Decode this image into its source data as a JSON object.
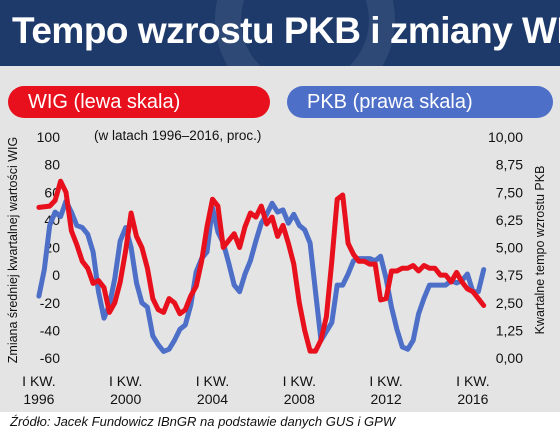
{
  "header": {
    "title": "Tempo wzrostu PKB i zmiany WIG"
  },
  "legend": {
    "wig": "WIG (lewa skala)",
    "pkb": "PKB (prawa skala)"
  },
  "footer": {
    "source": "Źródło: Jacek Fundowicz IBnGR na podstawie danych GUS i GPW"
  },
  "colors": {
    "wig": "#e8101c",
    "pkb": "#4d6fc7",
    "header_bg": "#1e3a6b",
    "plot_bg": "#e4e4e4"
  },
  "chart_data": {
    "type": "line",
    "subtitle": "(w latach 1996–2016, proc.)",
    "ylabel_left": "Zmiana średniej kwartalnej wartości WIG",
    "ylabel_right": "Kwartalne tempo wzrostu PKB",
    "left_ticks": [
      "100",
      "80",
      "60",
      "40",
      "20",
      "0",
      "-20",
      "-40",
      "-60"
    ],
    "right_ticks": [
      "10,00",
      "8,75",
      "7,50",
      "6,25",
      "5,00",
      "3,75",
      "2,50",
      "1,25",
      "0,00"
    ],
    "x_tick_labels": [
      {
        "line1": "I KW.",
        "line2": "1996",
        "x": 1996
      },
      {
        "line1": "I KW.",
        "line2": "2000",
        "x": 2000
      },
      {
        "line1": "I KW.",
        "line2": "2004",
        "x": 2004
      },
      {
        "line1": "I KW.",
        "line2": "2008",
        "x": 2008
      },
      {
        "line1": "I KW.",
        "line2": "2012",
        "x": 2012
      },
      {
        "line1": "I KW.",
        "line2": "2016",
        "x": 2016
      }
    ],
    "xlim": [
      1995.5,
      2017.25
    ],
    "ylim_left": [
      -65,
      100
    ],
    "ylim_right": [
      -0.5,
      10
    ],
    "grid": false,
    "series": [
      {
        "name": "WIG (lewa skala)",
        "axis": "left",
        "color": "#e8101c",
        "points": [
          [
            1996.0,
            49
          ],
          [
            1996.5,
            50
          ],
          [
            1996.75,
            54
          ],
          [
            1997.0,
            68
          ],
          [
            1997.25,
            60
          ],
          [
            1997.5,
            32
          ],
          [
            1997.75,
            22
          ],
          [
            1998.0,
            10
          ],
          [
            1998.25,
            5
          ],
          [
            1998.5,
            -6
          ],
          [
            1998.75,
            -4
          ],
          [
            1999.0,
            -9
          ],
          [
            1999.25,
            -27
          ],
          [
            1999.5,
            -20
          ],
          [
            1999.75,
            -5
          ],
          [
            2000.0,
            18
          ],
          [
            2000.25,
            45
          ],
          [
            2000.5,
            28
          ],
          [
            2000.75,
            20
          ],
          [
            2001.0,
            5
          ],
          [
            2001.25,
            -17
          ],
          [
            2001.5,
            -25
          ],
          [
            2001.75,
            -27
          ],
          [
            2002.0,
            -17
          ],
          [
            2002.25,
            -20
          ],
          [
            2002.5,
            -28
          ],
          [
            2002.75,
            -25
          ],
          [
            2003.0,
            -15
          ],
          [
            2003.25,
            -8
          ],
          [
            2003.5,
            10
          ],
          [
            2003.75,
            35
          ],
          [
            2004.0,
            55
          ],
          [
            2004.25,
            50
          ],
          [
            2004.5,
            20
          ],
          [
            2004.75,
            25
          ],
          [
            2005.0,
            30
          ],
          [
            2005.25,
            20
          ],
          [
            2005.5,
            35
          ],
          [
            2005.75,
            45
          ],
          [
            2006.0,
            42
          ],
          [
            2006.25,
            50
          ],
          [
            2006.5,
            37
          ],
          [
            2006.75,
            42
          ],
          [
            2007.0,
            28
          ],
          [
            2007.25,
            36
          ],
          [
            2007.5,
            23
          ],
          [
            2007.75,
            8
          ],
          [
            2008.0,
            -20
          ],
          [
            2008.25,
            -40
          ],
          [
            2008.5,
            -55
          ],
          [
            2008.75,
            -55
          ],
          [
            2009.0,
            -47
          ],
          [
            2009.25,
            -30
          ],
          [
            2009.5,
            10
          ],
          [
            2009.75,
            55
          ],
          [
            2010.0,
            58
          ],
          [
            2010.25,
            23
          ],
          [
            2010.5,
            15
          ],
          [
            2010.75,
            10
          ],
          [
            2011.0,
            10
          ],
          [
            2011.25,
            8
          ],
          [
            2011.5,
            8
          ],
          [
            2011.75,
            -18
          ],
          [
            2012.0,
            -17
          ],
          [
            2012.25,
            3
          ],
          [
            2012.5,
            3
          ],
          [
            2012.75,
            5
          ],
          [
            2013.0,
            5
          ],
          [
            2013.25,
            7
          ],
          [
            2013.5,
            3
          ],
          [
            2013.75,
            7
          ],
          [
            2014.0,
            5
          ],
          [
            2014.25,
            5
          ],
          [
            2014.5,
            0
          ],
          [
            2014.75,
            0
          ],
          [
            2015.0,
            -5
          ],
          [
            2015.25,
            2
          ],
          [
            2015.5,
            -5
          ],
          [
            2015.75,
            -10
          ],
          [
            2016.0,
            -12
          ],
          [
            2016.25,
            -17
          ],
          [
            2016.5,
            -22
          ]
        ]
      },
      {
        "name": "PKB (prawa skala)",
        "axis": "right",
        "color": "#4d6fc7",
        "points": [
          [
            1996.0,
            2.8
          ],
          [
            1996.25,
            4.0
          ],
          [
            1996.5,
            6.0
          ],
          [
            1996.75,
            6.6
          ],
          [
            1997.0,
            6.4
          ],
          [
            1997.25,
            7.1
          ],
          [
            1997.5,
            6.6
          ],
          [
            1997.75,
            6.0
          ],
          [
            1998.0,
            5.9
          ],
          [
            1998.25,
            5.6
          ],
          [
            1998.5,
            4.8
          ],
          [
            1998.75,
            3.0
          ],
          [
            1999.0,
            1.8
          ],
          [
            1999.25,
            2.4
          ],
          [
            1999.5,
            3.6
          ],
          [
            1999.75,
            5.3
          ],
          [
            2000.0,
            5.9
          ],
          [
            2000.25,
            5.0
          ],
          [
            2000.5,
            3.4
          ],
          [
            2000.75,
            2.5
          ],
          [
            2001.0,
            2.3
          ],
          [
            2001.25,
            1.0
          ],
          [
            2001.5,
            0.6
          ],
          [
            2001.75,
            0.3
          ],
          [
            2002.0,
            0.4
          ],
          [
            2002.25,
            0.8
          ],
          [
            2002.5,
            1.3
          ],
          [
            2002.75,
            1.5
          ],
          [
            2003.0,
            2.4
          ],
          [
            2003.25,
            3.9
          ],
          [
            2003.5,
            4.5
          ],
          [
            2003.75,
            4.8
          ],
          [
            2004.0,
            6.8
          ],
          [
            2004.25,
            5.7
          ],
          [
            2004.5,
            5.2
          ],
          [
            2004.75,
            4.3
          ],
          [
            2005.0,
            3.3
          ],
          [
            2005.25,
            3.0
          ],
          [
            2005.5,
            3.8
          ],
          [
            2005.75,
            4.4
          ],
          [
            2006.0,
            5.3
          ],
          [
            2006.25,
            6.1
          ],
          [
            2006.5,
            6.5
          ],
          [
            2006.75,
            7.0
          ],
          [
            2007.0,
            6.6
          ],
          [
            2007.25,
            6.7
          ],
          [
            2007.5,
            6.1
          ],
          [
            2007.75,
            6.5
          ],
          [
            2008.0,
            6.0
          ],
          [
            2008.25,
            5.8
          ],
          [
            2008.5,
            5.2
          ],
          [
            2008.75,
            3.0
          ],
          [
            2009.0,
            0.8
          ],
          [
            2009.25,
            1.2
          ],
          [
            2009.5,
            1.6
          ],
          [
            2009.75,
            3.3
          ],
          [
            2010.0,
            3.3
          ],
          [
            2010.25,
            3.8
          ],
          [
            2010.5,
            4.4
          ],
          [
            2010.75,
            4.5
          ],
          [
            2011.0,
            4.5
          ],
          [
            2011.25,
            4.5
          ],
          [
            2011.5,
            4.4
          ],
          [
            2011.75,
            4.6
          ],
          [
            2012.0,
            3.6
          ],
          [
            2012.25,
            2.3
          ],
          [
            2012.5,
            1.3
          ],
          [
            2012.75,
            0.5
          ],
          [
            2013.0,
            0.4
          ],
          [
            2013.25,
            0.8
          ],
          [
            2013.5,
            2.0
          ],
          [
            2013.75,
            2.7
          ],
          [
            2014.0,
            3.3
          ],
          [
            2014.25,
            3.3
          ],
          [
            2014.5,
            3.3
          ],
          [
            2014.75,
            3.3
          ],
          [
            2015.0,
            3.5
          ],
          [
            2015.25,
            3.4
          ],
          [
            2015.5,
            3.5
          ],
          [
            2015.75,
            3.8
          ],
          [
            2016.0,
            3.0
          ],
          [
            2016.25,
            3.0
          ],
          [
            2016.5,
            4.0
          ]
        ]
      }
    ]
  }
}
